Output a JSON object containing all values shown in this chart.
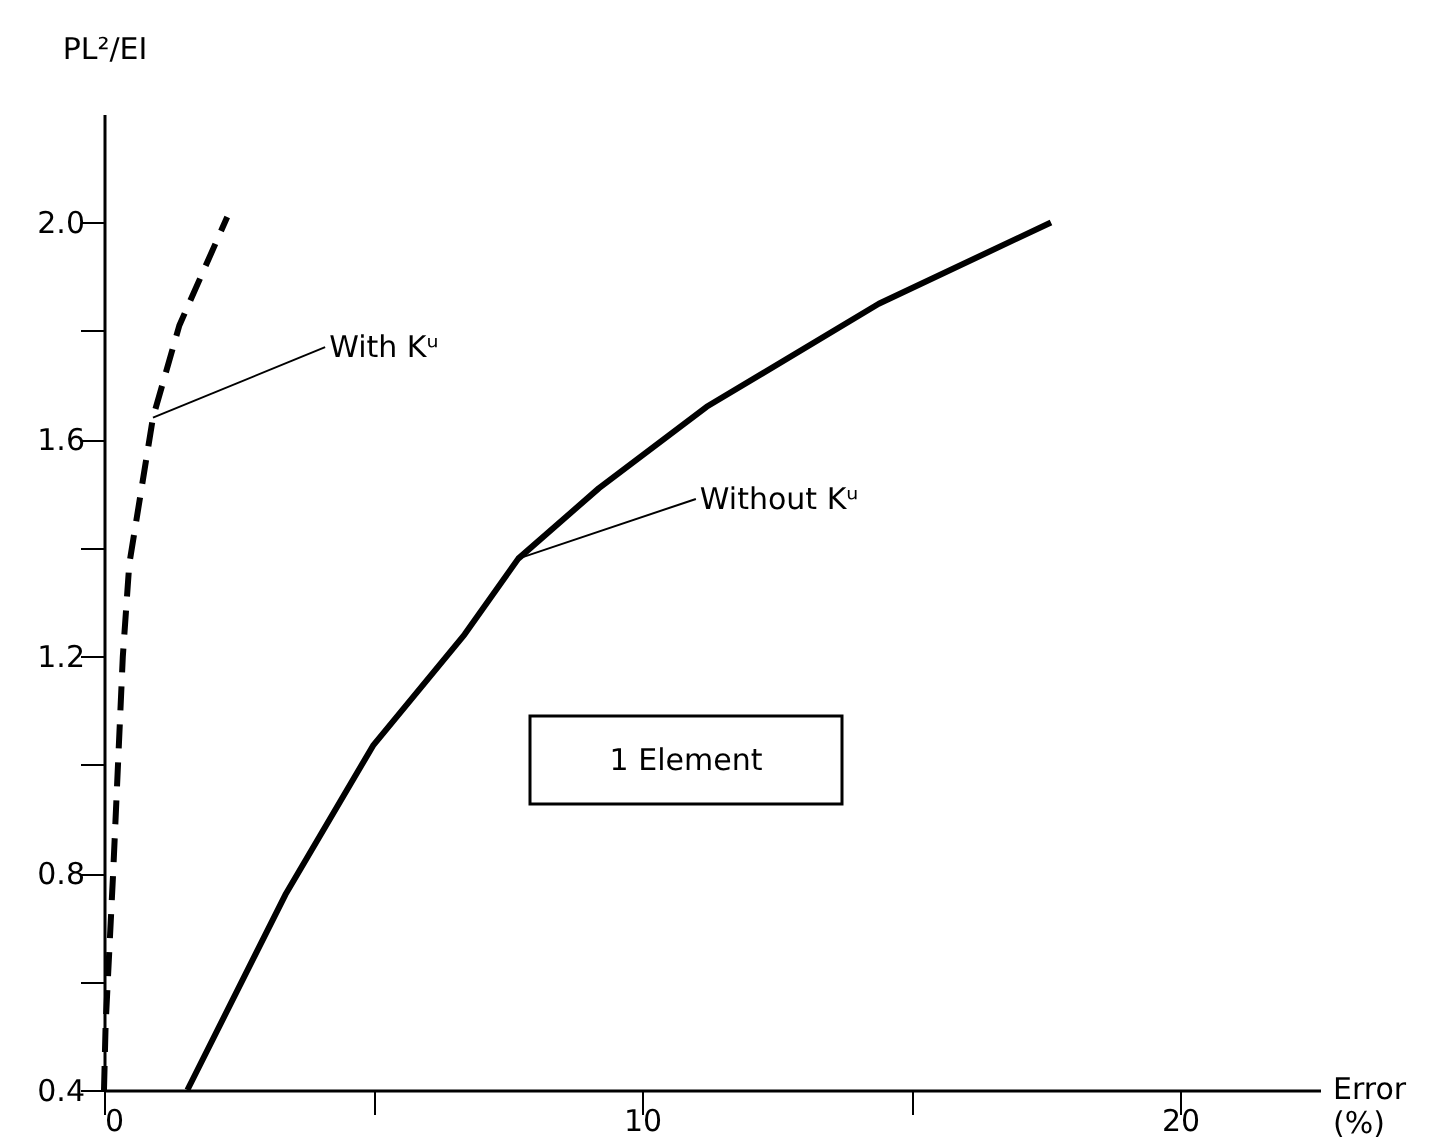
{
  "chart_data": {
    "type": "line",
    "xlabel": "Error (%)",
    "ylabel": "PL²/EI",
    "xlim": [
      0,
      22.6
    ],
    "ylim": [
      0.4,
      2.2
    ],
    "xticks": [
      0,
      {
        "value": 5,
        "label": null
      },
      10,
      {
        "value": 15,
        "label": null
      },
      20
    ],
    "yticks": [
      0.4,
      {
        "value": 0.6,
        "label": null
      },
      0.8,
      {
        "value": 1.0,
        "label": null
      },
      1.2,
      {
        "value": 1.4,
        "label": null
      },
      1.6,
      {
        "value": 1.8,
        "label": null
      },
      {
        "value": 2.0,
        "label": "2.0"
      }
    ],
    "grid": false,
    "marker": "none",
    "series": [
      {
        "color": "#000000",
        "line_style": "dashed",
        "x": [
          0,
          0.03,
          0.17,
          0.35,
          0.47,
          0.91,
          1.4,
          2.29
        ],
        "values": [
          0.4,
          0.52,
          0.8,
          1.2,
          1.37,
          1.64,
          1.81,
          2.01
        ]
      },
      {
        "color": "#000000",
        "line_style": "solid",
        "x": [
          1.55,
          3.37,
          5.0,
          6.7,
          7.7,
          9.2,
          11.2,
          14.4,
          17.6
        ],
        "values": [
          0.4,
          0.76,
          1.035,
          1.24,
          1.38,
          1.51,
          1.66,
          1.85,
          2.0
        ]
      }
    ],
    "annotations": [
      {
        "text": "With Kᵘ",
        "x": 0.91,
        "y": 1.64
      },
      {
        "text": "Without Kᵘ",
        "x": 7.7,
        "y": 1.38
      },
      "1 Element"
    ]
  }
}
